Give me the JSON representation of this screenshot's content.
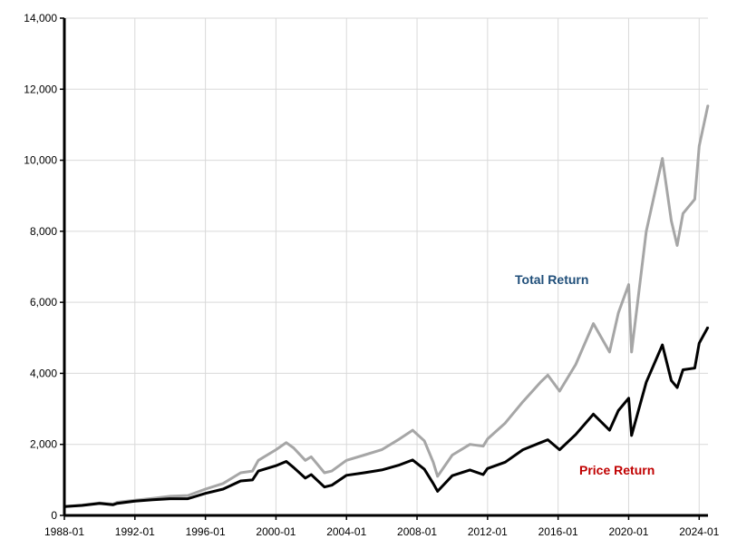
{
  "chart_data": {
    "type": "line",
    "title": "",
    "xlabel": "",
    "ylabel": "",
    "xlim": [
      "1988-01",
      "2024-07"
    ],
    "ylim": [
      0,
      14000
    ],
    "grid": true,
    "x_ticks": [
      "1988-01",
      "1992-01",
      "1996-01",
      "2000-01",
      "2004-01",
      "2008-01",
      "2012-01",
      "2016-01",
      "2020-01",
      "2024-01"
    ],
    "y_ticks": [
      "0",
      "2,000",
      "4,000",
      "6,000",
      "8,000",
      "10,000",
      "12,000",
      "14,000"
    ],
    "colors": {
      "total": "#a6a6a6",
      "price": "#000000",
      "total_label": "#1f4e79",
      "price_label": "#c00000",
      "grid": "#d9d9d9"
    },
    "series": [
      {
        "name": "Total Return",
        "values": [
          {
            "x": "1988-01",
            "y": 250
          },
          {
            "x": "1989-01",
            "y": 290
          },
          {
            "x": "1990-01",
            "y": 350
          },
          {
            "x": "1990-10",
            "y": 320
          },
          {
            "x": "1991-01",
            "y": 370
          },
          {
            "x": "1992-01",
            "y": 430
          },
          {
            "x": "1993-01",
            "y": 480
          },
          {
            "x": "1994-01",
            "y": 540
          },
          {
            "x": "1995-01",
            "y": 560
          },
          {
            "x": "1996-01",
            "y": 740
          },
          {
            "x": "1997-01",
            "y": 900
          },
          {
            "x": "1998-01",
            "y": 1200
          },
          {
            "x": "1998-09",
            "y": 1250
          },
          {
            "x": "1999-01",
            "y": 1550
          },
          {
            "x": "2000-01",
            "y": 1850
          },
          {
            "x": "2000-08",
            "y": 2050
          },
          {
            "x": "2001-01",
            "y": 1900
          },
          {
            "x": "2001-09",
            "y": 1550
          },
          {
            "x": "2002-01",
            "y": 1650
          },
          {
            "x": "2002-10",
            "y": 1200
          },
          {
            "x": "2003-03",
            "y": 1250
          },
          {
            "x": "2004-01",
            "y": 1550
          },
          {
            "x": "2005-01",
            "y": 1700
          },
          {
            "x": "2006-01",
            "y": 1850
          },
          {
            "x": "2007-01",
            "y": 2150
          },
          {
            "x": "2007-10",
            "y": 2400
          },
          {
            "x": "2008-06",
            "y": 2100
          },
          {
            "x": "2008-12",
            "y": 1500
          },
          {
            "x": "2009-03",
            "y": 1100
          },
          {
            "x": "2010-01",
            "y": 1700
          },
          {
            "x": "2011-01",
            "y": 2000
          },
          {
            "x": "2011-10",
            "y": 1950
          },
          {
            "x": "2012-01",
            "y": 2150
          },
          {
            "x": "2013-01",
            "y": 2600
          },
          {
            "x": "2014-01",
            "y": 3200
          },
          {
            "x": "2015-01",
            "y": 3750
          },
          {
            "x": "2015-06",
            "y": 3950
          },
          {
            "x": "2016-02",
            "y": 3500
          },
          {
            "x": "2017-01",
            "y": 4250
          },
          {
            "x": "2018-01",
            "y": 5400
          },
          {
            "x": "2018-12",
            "y": 4600
          },
          {
            "x": "2019-06",
            "y": 5700
          },
          {
            "x": "2020-01",
            "y": 6500
          },
          {
            "x": "2020-03",
            "y": 4600
          },
          {
            "x": "2021-01",
            "y": 8000
          },
          {
            "x": "2021-12",
            "y": 10050
          },
          {
            "x": "2022-06",
            "y": 8300
          },
          {
            "x": "2022-10",
            "y": 7600
          },
          {
            "x": "2023-02",
            "y": 8500
          },
          {
            "x": "2023-10",
            "y": 8900
          },
          {
            "x": "2024-01",
            "y": 10400
          },
          {
            "x": "2024-07",
            "y": 11550
          }
        ]
      },
      {
        "name": "Price Return",
        "values": [
          {
            "x": "1988-01",
            "y": 250
          },
          {
            "x": "1989-01",
            "y": 280
          },
          {
            "x": "1990-01",
            "y": 340
          },
          {
            "x": "1990-10",
            "y": 300
          },
          {
            "x": "1991-01",
            "y": 340
          },
          {
            "x": "1992-01",
            "y": 400
          },
          {
            "x": "1993-01",
            "y": 440
          },
          {
            "x": "1994-01",
            "y": 470
          },
          {
            "x": "1995-01",
            "y": 470
          },
          {
            "x": "1996-01",
            "y": 620
          },
          {
            "x": "1997-01",
            "y": 740
          },
          {
            "x": "1998-01",
            "y": 970
          },
          {
            "x": "1998-09",
            "y": 1000
          },
          {
            "x": "1999-01",
            "y": 1250
          },
          {
            "x": "2000-01",
            "y": 1400
          },
          {
            "x": "2000-08",
            "y": 1520
          },
          {
            "x": "2001-01",
            "y": 1350
          },
          {
            "x": "2001-09",
            "y": 1050
          },
          {
            "x": "2002-01",
            "y": 1150
          },
          {
            "x": "2002-10",
            "y": 800
          },
          {
            "x": "2003-03",
            "y": 850
          },
          {
            "x": "2004-01",
            "y": 1130
          },
          {
            "x": "2005-01",
            "y": 1200
          },
          {
            "x": "2006-01",
            "y": 1280
          },
          {
            "x": "2007-01",
            "y": 1420
          },
          {
            "x": "2007-10",
            "y": 1560
          },
          {
            "x": "2008-06",
            "y": 1300
          },
          {
            "x": "2008-12",
            "y": 900
          },
          {
            "x": "2009-03",
            "y": 680
          },
          {
            "x": "2010-01",
            "y": 1120
          },
          {
            "x": "2011-01",
            "y": 1280
          },
          {
            "x": "2011-10",
            "y": 1150
          },
          {
            "x": "2012-01",
            "y": 1320
          },
          {
            "x": "2013-01",
            "y": 1500
          },
          {
            "x": "2014-01",
            "y": 1850
          },
          {
            "x": "2015-01",
            "y": 2050
          },
          {
            "x": "2015-06",
            "y": 2130
          },
          {
            "x": "2016-02",
            "y": 1850
          },
          {
            "x": "2017-01",
            "y": 2280
          },
          {
            "x": "2018-01",
            "y": 2850
          },
          {
            "x": "2018-12",
            "y": 2400
          },
          {
            "x": "2019-06",
            "y": 2950
          },
          {
            "x": "2020-01",
            "y": 3300
          },
          {
            "x": "2020-03",
            "y": 2250
          },
          {
            "x": "2021-01",
            "y": 3750
          },
          {
            "x": "2021-12",
            "y": 4800
          },
          {
            "x": "2022-06",
            "y": 3800
          },
          {
            "x": "2022-10",
            "y": 3600
          },
          {
            "x": "2023-02",
            "y": 4100
          },
          {
            "x": "2023-10",
            "y": 4150
          },
          {
            "x": "2024-01",
            "y": 4850
          },
          {
            "x": "2024-07",
            "y": 5300
          }
        ]
      }
    ],
    "annotations": {
      "total_return": "Total Return",
      "price_return": "Price Return"
    }
  }
}
